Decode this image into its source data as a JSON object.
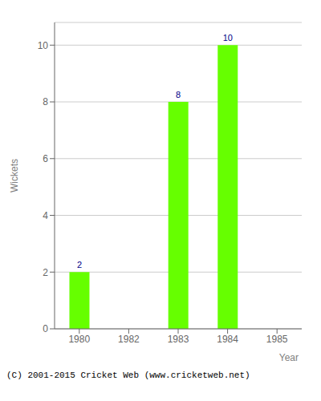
{
  "chart_data": {
    "type": "bar",
    "categories": [
      "1980",
      "1982",
      "1983",
      "1984",
      "1985"
    ],
    "values": [
      2,
      0,
      8,
      10,
      0
    ],
    "color": "#66ff00",
    "x_label": "Year",
    "y_label": "Wickets",
    "ylim": [
      0,
      10.8
    ],
    "yticks": [
      0,
      2,
      4,
      6,
      8,
      10
    ],
    "grid": true,
    "data_labels": true,
    "annotations": [
      "(C) 2001-2015 Cricket Web (www.cricketweb.net)"
    ]
  }
}
